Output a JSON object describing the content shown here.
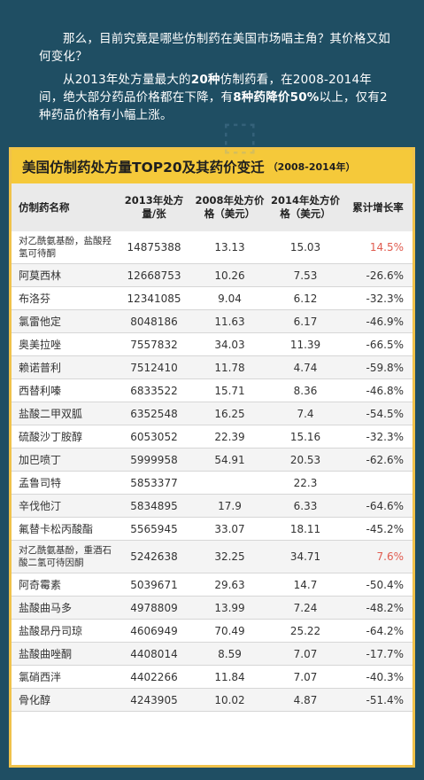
{
  "intro": {
    "p1": "那么，目前究竟是哪些仿制药在美国市场唱主角？其价格又如何变化？",
    "p2_a": "从2013年处方量最大的",
    "p2_b": "20种",
    "p2_c": "仿制药看，在2008-2014年间，绝大部分药品价格都在下降，有",
    "p2_d": "8种药降价50%",
    "p2_e": "以上，仅有2种药品价格有小幅上涨。"
  },
  "banner": {
    "title": "美国仿制药处方量TOP20及其药价变迁",
    "subtitle": "（2008-2014年）"
  },
  "headers": [
    "仿制药名称",
    "2013年处方量/张",
    "2008年处方价格（美元）",
    "2014年处方价格（美元）",
    "累计增长率"
  ],
  "rows": [
    {
      "name": "对乙酰氨基酚，盐酸羟氢可待酮",
      "rx": "14875388",
      "p2008": "13.13",
      "p2014": "15.03",
      "rate": "14.5%"
    },
    {
      "name": "阿莫西林",
      "rx": "12668753",
      "p2008": "10.26",
      "p2014": "7.53",
      "rate": "-26.6%"
    },
    {
      "name": "布洛芬",
      "rx": "12341085",
      "p2008": "9.04",
      "p2014": "6.12",
      "rate": "-32.3%"
    },
    {
      "name": "氯雷他定",
      "rx": "8048186",
      "p2008": "11.63",
      "p2014": "6.17",
      "rate": "-46.9%"
    },
    {
      "name": "奥美拉唑",
      "rx": "7557832",
      "p2008": "34.03",
      "p2014": "11.39",
      "rate": "-66.5%"
    },
    {
      "name": "赖诺普利",
      "rx": "7512410",
      "p2008": "11.78",
      "p2014": "4.74",
      "rate": "-59.8%"
    },
    {
      "name": "西替利嗪",
      "rx": "6833522",
      "p2008": "15.71",
      "p2014": "8.36",
      "rate": "-46.8%"
    },
    {
      "name": "盐酸二甲双胍",
      "rx": "6352548",
      "p2008": "16.25",
      "p2014": "7.4",
      "rate": "-54.5%"
    },
    {
      "name": "硫酸沙丁胺醇",
      "rx": "6053052",
      "p2008": "22.39",
      "p2014": "15.16",
      "rate": "-32.3%"
    },
    {
      "name": "加巴喷丁",
      "rx": "5999958",
      "p2008": "54.91",
      "p2014": "20.53",
      "rate": "-62.6%"
    },
    {
      "name": "孟鲁司特",
      "rx": "5853377",
      "p2008": "",
      "p2014": "22.3",
      "rate": ""
    },
    {
      "name": "辛伐他汀",
      "rx": "5834895",
      "p2008": "17.9",
      "p2014": "6.33",
      "rate": "-64.6%"
    },
    {
      "name": "氟替卡松丙酸酯",
      "rx": "5565945",
      "p2008": "33.07",
      "p2014": "18.11",
      "rate": "-45.2%"
    },
    {
      "name": "对乙酰氨基酚，重酒石酸二氢可待因酮",
      "rx": "5242638",
      "p2008": "32.25",
      "p2014": "34.71",
      "rate": "7.6%"
    },
    {
      "name": "阿奇霉素",
      "rx": "5039671",
      "p2008": "29.63",
      "p2014": "14.7",
      "rate": "-50.4%"
    },
    {
      "name": "盐酸曲马多",
      "rx": "4978809",
      "p2008": "13.99",
      "p2014": "7.24",
      "rate": "-48.2%"
    },
    {
      "name": "盐酸昂丹司琼",
      "rx": "4606949",
      "p2008": "70.49",
      "p2014": "25.22",
      "rate": "-64.2%"
    },
    {
      "name": "盐酸曲唑酮",
      "rx": "4408014",
      "p2008": "8.59",
      "p2014": "7.07",
      "rate": "-17.7%"
    },
    {
      "name": "氯硝西泮",
      "rx": "4402266",
      "p2008": "11.84",
      "p2014": "7.07",
      "rate": "-40.3%"
    },
    {
      "name": "骨化醇",
      "rx": "4243905",
      "p2008": "10.02",
      "p2014": "4.87",
      "rate": "-51.4%"
    }
  ],
  "colors": {
    "background": "#1f4e63",
    "banner": "#f5c93a",
    "positive_rate": "#e05b4f"
  }
}
